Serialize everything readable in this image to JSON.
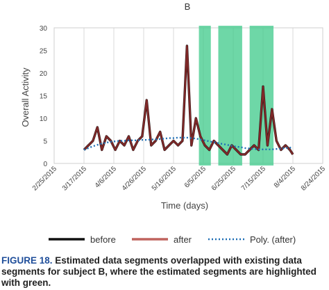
{
  "caption": {
    "label": "FIGURE 18.",
    "text": "Estimated data segments overlapped with existing data segments for subject B, where the estimated segments are highlighted with green."
  },
  "chart_data": {
    "type": "line",
    "title": "B",
    "xlabel": "Time (days)",
    "ylabel": "Overall Activity",
    "ylim": [
      0,
      30
    ],
    "yticks": [
      0,
      5,
      10,
      15,
      20,
      25,
      30
    ],
    "xlim": [
      "2015-02-25",
      "2015-08-24"
    ],
    "xticks": [
      "2/25/2015",
      "3/17/2015",
      "4/6/2015",
      "4/26/2015",
      "5/16/2015",
      "6/5/2015",
      "6/25/2015",
      "7/15/2015",
      "8/4/2015",
      "8/24/2015"
    ],
    "grid": "vertical",
    "legend": "bottom",
    "highlight_color": "#3ec98a",
    "highlighted_segments": [
      [
        "2015-06-02",
        "2015-06-10"
      ],
      [
        "2015-06-15",
        "2015-07-01"
      ],
      [
        "2015-07-06",
        "2015-07-22"
      ]
    ],
    "x": [
      "2015-03-17",
      "2015-03-20",
      "2015-03-23",
      "2015-03-26",
      "2015-03-29",
      "2015-04-01",
      "2015-04-04",
      "2015-04-07",
      "2015-04-10",
      "2015-04-13",
      "2015-04-16",
      "2015-04-19",
      "2015-04-22",
      "2015-04-25",
      "2015-04-28",
      "2015-05-01",
      "2015-05-04",
      "2015-05-07",
      "2015-05-10",
      "2015-05-13",
      "2015-05-16",
      "2015-05-19",
      "2015-05-22",
      "2015-05-25",
      "2015-05-28",
      "2015-05-31",
      "2015-06-03",
      "2015-06-06",
      "2015-06-09",
      "2015-06-12",
      "2015-06-15",
      "2015-06-18",
      "2015-06-21",
      "2015-06-24",
      "2015-06-27",
      "2015-06-30",
      "2015-07-03",
      "2015-07-06",
      "2015-07-09",
      "2015-07-12",
      "2015-07-15",
      "2015-07-18",
      "2015-07-21",
      "2015-07-24",
      "2015-07-27",
      "2015-07-30",
      "2015-08-02",
      "2015-08-04"
    ],
    "series": [
      {
        "name": "before",
        "color": "#111111",
        "values": [
          3,
          4,
          5,
          8,
          3,
          6,
          5,
          3,
          5,
          4,
          6,
          3,
          5,
          6,
          14,
          4,
          5,
          7,
          3,
          4,
          5,
          4,
          5,
          26,
          4,
          10,
          6,
          4,
          3,
          5,
          4,
          3,
          2,
          4,
          3,
          2,
          2,
          3,
          4,
          3,
          17,
          4,
          12,
          5,
          3,
          4,
          3,
          2
        ]
      },
      {
        "name": "after",
        "color": "#c0635e",
        "values": [
          3,
          4,
          5,
          8,
          3,
          6,
          5,
          3,
          5,
          4,
          6,
          3,
          5,
          6,
          14,
          4,
          5,
          7,
          3,
          4,
          5,
          4,
          5,
          26,
          4,
          10,
          6,
          4,
          3,
          5,
          4,
          3,
          2,
          4,
          3,
          2,
          2,
          3,
          4,
          3,
          17,
          4,
          12,
          5,
          3,
          4,
          3,
          2
        ]
      },
      {
        "name": "Poly. (after)",
        "color": "#1f6fb5",
        "style": "dotted",
        "values": [
          3,
          3.4,
          3.8,
          4.1,
          4.4,
          4.6,
          4.8,
          4.9,
          5,
          5,
          5.1,
          5.1,
          5.1,
          5.2,
          5.2,
          5.3,
          5.3,
          5.4,
          5.5,
          5.6,
          5.6,
          5.7,
          5.7,
          5.7,
          5.6,
          5.5,
          5.3,
          5.1,
          4.9,
          4.7,
          4.5,
          4.3,
          4.1,
          3.9,
          3.7,
          3.6,
          3.4,
          3.3,
          3.2,
          3.1,
          3.1,
          3.1,
          3.1,
          3.2,
          3.3,
          3.4,
          3.5,
          3.5
        ]
      }
    ]
  }
}
